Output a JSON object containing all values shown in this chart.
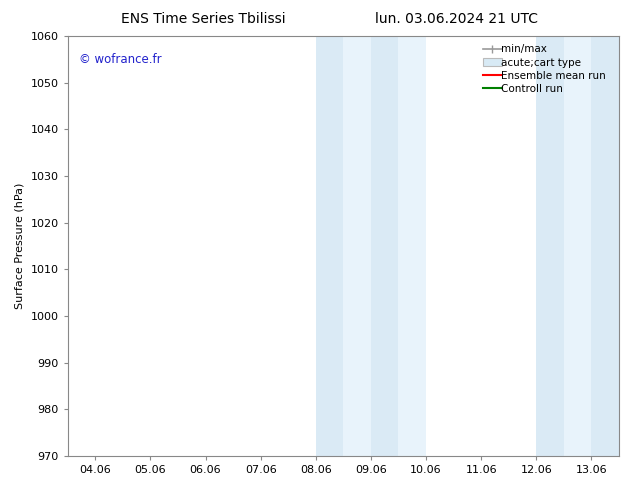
{
  "title_left": "ENS Time Series Tbilissi",
  "title_right": "lun. 03.06.2024 21 UTC",
  "ylabel": "Surface Pressure (hPa)",
  "ylim": [
    970,
    1060
  ],
  "yticks": [
    970,
    980,
    990,
    1000,
    1010,
    1020,
    1030,
    1040,
    1050,
    1060
  ],
  "xtick_labels": [
    "04.06",
    "05.06",
    "06.06",
    "07.06",
    "08.06",
    "09.06",
    "10.06",
    "11.06",
    "12.06",
    "13.06"
  ],
  "xtick_positions": [
    0,
    1,
    2,
    3,
    4,
    5,
    6,
    7,
    8,
    9
  ],
  "xlim": [
    -0.5,
    9.5
  ],
  "shade1_color": "#daeaf5",
  "shade2_color": "#e8f3fb",
  "shaded_band1": [
    {
      "x_start": 4.0,
      "x_end": 4.5,
      "shade": 1
    },
    {
      "x_start": 4.5,
      "x_end": 5.0,
      "shade": 2
    },
    {
      "x_start": 5.0,
      "x_end": 5.5,
      "shade": 1
    },
    {
      "x_start": 5.5,
      "x_end": 6.0,
      "shade": 2
    }
  ],
  "shaded_band2": [
    {
      "x_start": 8.0,
      "x_end": 8.5,
      "shade": 1
    },
    {
      "x_start": 8.5,
      "x_end": 9.0,
      "shade": 2
    },
    {
      "x_start": 9.0,
      "x_end": 9.5,
      "shade": 1
    }
  ],
  "watermark": "© wofrance.fr",
  "watermark_color": "#2222cc",
  "bg_color": "#ffffff",
  "spine_color": "#888888",
  "tick_color": "#888888",
  "title_fontsize": 10,
  "label_fontsize": 8,
  "tick_fontsize": 8,
  "legend_fontsize": 7.5
}
